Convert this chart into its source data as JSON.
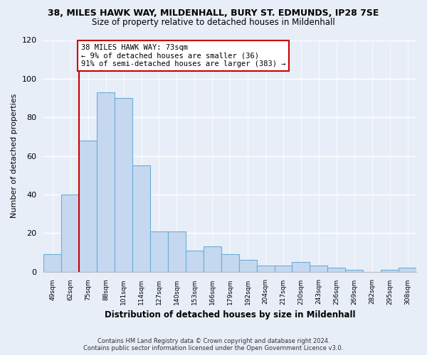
{
  "title_line1": "38, MILES HAWK WAY, MILDENHALL, BURY ST. EDMUNDS, IP28 7SE",
  "title_line2": "Size of property relative to detached houses in Mildenhall",
  "xlabel": "Distribution of detached houses by size in Mildenhall",
  "ylabel": "Number of detached properties",
  "bar_labels": [
    "49sqm",
    "62sqm",
    "75sqm",
    "88sqm",
    "101sqm",
    "114sqm",
    "127sqm",
    "140sqm",
    "153sqm",
    "166sqm",
    "179sqm",
    "192sqm",
    "204sqm",
    "217sqm",
    "230sqm",
    "243sqm",
    "256sqm",
    "269sqm",
    "282sqm",
    "295sqm",
    "308sqm"
  ],
  "bar_values": [
    9,
    40,
    68,
    93,
    90,
    55,
    21,
    21,
    11,
    13,
    9,
    6,
    3,
    3,
    5,
    3,
    2,
    1,
    0,
    1,
    2
  ],
  "bar_color": "#c5d8f0",
  "bar_edge_color": "#6baed6",
  "property_line_color": "#cc0000",
  "annotation_text": "38 MILES HAWK WAY: 73sqm\n← 9% of detached houses are smaller (36)\n91% of semi-detached houses are larger (383) →",
  "annotation_box_color": "#ffffff",
  "annotation_box_edge_color": "#cc0000",
  "ylim": [
    0,
    120
  ],
  "yticks": [
    0,
    20,
    40,
    60,
    80,
    100,
    120
  ],
  "footer_line1": "Contains HM Land Registry data © Crown copyright and database right 2024.",
  "footer_line2": "Contains public sector information licensed under the Open Government Licence v3.0.",
  "background_color": "#e8eef8"
}
